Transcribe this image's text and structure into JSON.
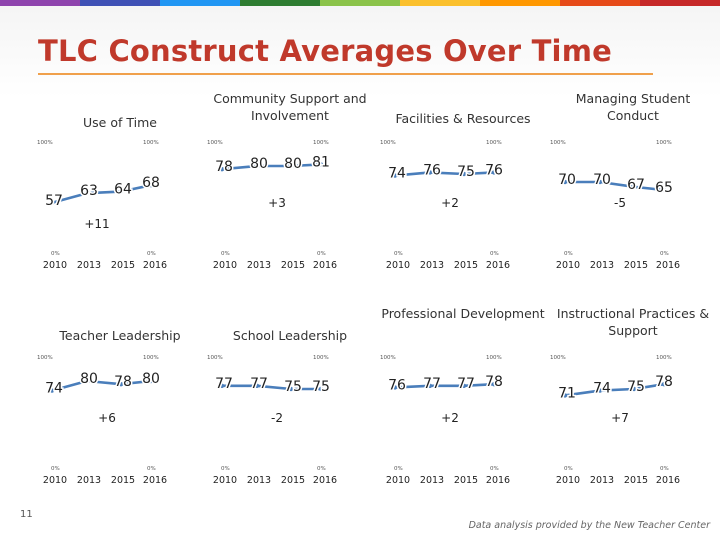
{
  "title": "TLC Construct Averages Over Time",
  "page_number": "11",
  "footer": "Data analysis provided by the New Teacher Center",
  "colors": {
    "title": "#c0392b",
    "line": "#4a7ebb",
    "underline": "#f0a04b",
    "topbar": [
      "#8e44ad",
      "#3f51b5",
      "#2196f3",
      "#2e7d32",
      "#8bc34a",
      "#fbc02d",
      "#ff9800",
      "#e64a19",
      "#c62828"
    ]
  },
  "axis": {
    "top_label": "100%",
    "bottom_label": "0%"
  },
  "chart_data": [
    {
      "type": "line",
      "title": "Use of Time",
      "categories": [
        "2010",
        "2013",
        "2015",
        "2016"
      ],
      "values": [
        57,
        63,
        64,
        68
      ],
      "change": "+11",
      "ylim": [
        0,
        100
      ]
    },
    {
      "type": "line",
      "title": "Community Support and Involvement",
      "categories": [
        "2010",
        "2013",
        "2015",
        "2016"
      ],
      "values": [
        78,
        80,
        80,
        81
      ],
      "change": "+3",
      "ylim": [
        0,
        100
      ]
    },
    {
      "type": "line",
      "title": "Facilities & Resources",
      "categories": [
        "2010",
        "2013",
        "2015",
        "2016"
      ],
      "values": [
        74,
        76,
        75,
        76
      ],
      "change": "+2",
      "ylim": [
        0,
        100
      ]
    },
    {
      "type": "line",
      "title": "Managing Student Conduct",
      "categories": [
        "2010",
        "2013",
        "2015",
        "2016"
      ],
      "values": [
        70,
        70,
        67,
        65
      ],
      "change": "-5",
      "ylim": [
        0,
        100
      ]
    },
    {
      "type": "line",
      "title": "Teacher Leadership",
      "categories": [
        "2010",
        "2013",
        "2015",
        "2016"
      ],
      "values": [
        74,
        80,
        78,
        80
      ],
      "change": "+6",
      "ylim": [
        0,
        100
      ]
    },
    {
      "type": "line",
      "title": "School Leadership",
      "categories": [
        "2010",
        "2013",
        "2015",
        "2016"
      ],
      "values": [
        77,
        77,
        75,
        75
      ],
      "change": "-2",
      "ylim": [
        0,
        100
      ]
    },
    {
      "type": "line",
      "title": "Professional Development",
      "categories": [
        "2010",
        "2013",
        "2015",
        "2016"
      ],
      "values": [
        76,
        77,
        77,
        78
      ],
      "change": "+2",
      "ylim": [
        0,
        100
      ]
    },
    {
      "type": "line",
      "title": "Instructional Practices & Support",
      "categories": [
        "2010",
        "2013",
        "2015",
        "2016"
      ],
      "values": [
        71,
        74,
        75,
        78
      ],
      "change": "+7",
      "ylim": [
        0,
        100
      ]
    }
  ]
}
